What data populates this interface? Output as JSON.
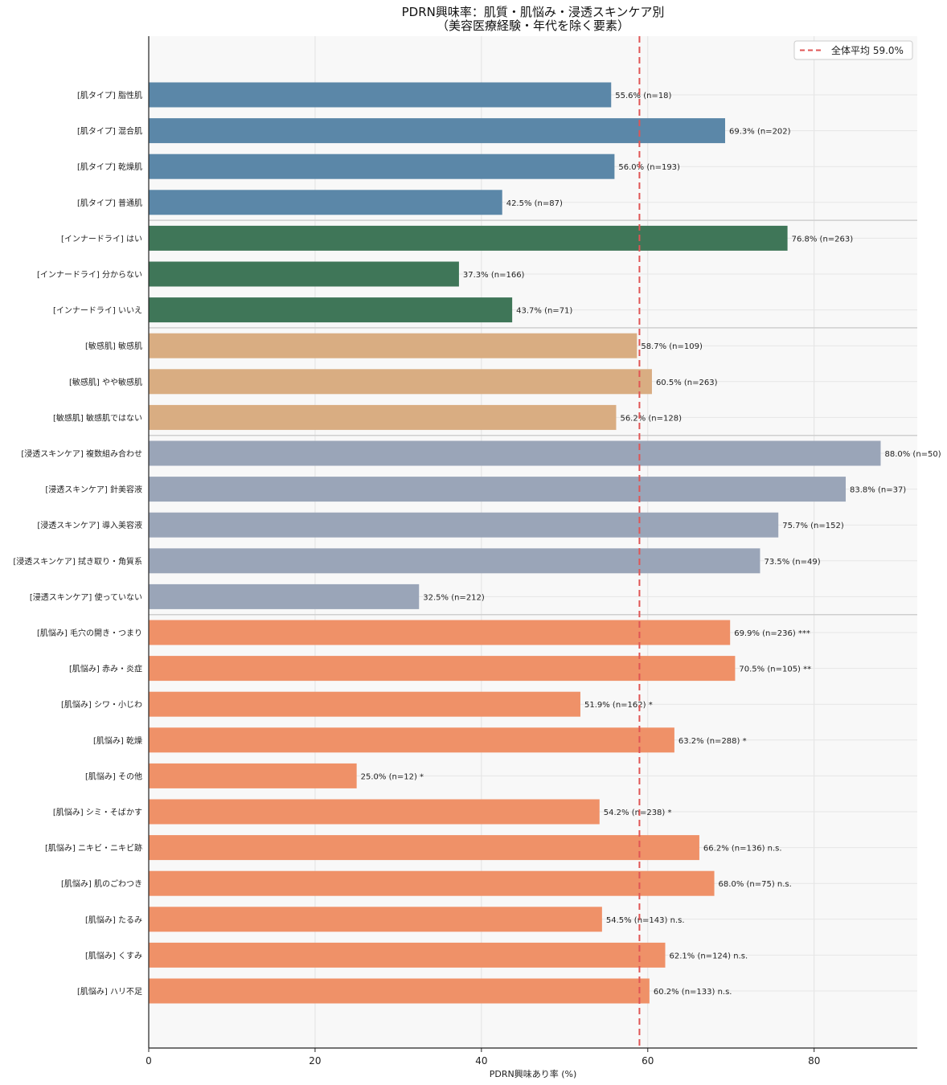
{
  "chart_data": {
    "type": "bar",
    "orientation": "horizontal",
    "title_line1": "PDRN興味率：肌質・肌悩み・浸透スキンケア別",
    "title_line2": "（美容医療経験・年代を除く要素）",
    "xlabel": "PDRN興味あり率 (%)",
    "ylabel": "",
    "xlim": [
      0,
      92.4
    ],
    "xticks": [
      0,
      20,
      40,
      60,
      80
    ],
    "grid": true,
    "reference_line": {
      "value": 59.0,
      "label": "全体平均 59.0%",
      "color": "#e05555"
    },
    "legend_position": "top-right",
    "groups": [
      {
        "name": "肌タイプ",
        "color": "#5b87a8",
        "count": 4
      },
      {
        "name": "インナードライ",
        "color": "#3f7658",
        "count": 3
      },
      {
        "name": "敏感肌",
        "color": "#d9ad82",
        "count": 3
      },
      {
        "name": "浸透スキンケア",
        "color": "#9aa5b8",
        "count": 5
      },
      {
        "name": "肌悩み",
        "color": "#ef9168",
        "count": 11
      }
    ],
    "bars": [
      {
        "label": "[肌タイプ] 脂性肌",
        "group": 0,
        "value": 55.6,
        "data_label": "55.6% (n=18)"
      },
      {
        "label": "[肌タイプ] 混合肌",
        "group": 0,
        "value": 69.3,
        "data_label": "69.3% (n=202)"
      },
      {
        "label": "[肌タイプ] 乾燥肌",
        "group": 0,
        "value": 56.0,
        "data_label": "56.0% (n=193)"
      },
      {
        "label": "[肌タイプ] 普通肌",
        "group": 0,
        "value": 42.5,
        "data_label": "42.5% (n=87)"
      },
      {
        "label": "[インナードライ] はい",
        "group": 1,
        "value": 76.8,
        "data_label": "76.8% (n=263)"
      },
      {
        "label": "[インナードライ] 分からない",
        "group": 1,
        "value": 37.3,
        "data_label": "37.3% (n=166)"
      },
      {
        "label": "[インナードライ] いいえ",
        "group": 1,
        "value": 43.7,
        "data_label": "43.7% (n=71)"
      },
      {
        "label": "[敏感肌] 敏感肌",
        "group": 2,
        "value": 58.7,
        "data_label": "58.7% (n=109)"
      },
      {
        "label": "[敏感肌] やや敏感肌",
        "group": 2,
        "value": 60.5,
        "data_label": "60.5% (n=263)"
      },
      {
        "label": "[敏感肌] 敏感肌ではない",
        "group": 2,
        "value": 56.2,
        "data_label": "56.2% (n=128)"
      },
      {
        "label": "[浸透スキンケア] 複数組み合わせ",
        "group": 3,
        "value": 88.0,
        "data_label": "88.0% (n=50)"
      },
      {
        "label": "[浸透スキンケア] 針美容液",
        "group": 3,
        "value": 83.8,
        "data_label": "83.8% (n=37)"
      },
      {
        "label": "[浸透スキンケア] 導入美容液",
        "group": 3,
        "value": 75.7,
        "data_label": "75.7% (n=152)"
      },
      {
        "label": "[浸透スキンケア] 拭き取り・角質系",
        "group": 3,
        "value": 73.5,
        "data_label": "73.5% (n=49)"
      },
      {
        "label": "[浸透スキンケア] 使っていない",
        "group": 3,
        "value": 32.5,
        "data_label": "32.5% (n=212)"
      },
      {
        "label": "[肌悩み] 毛穴の開き・つまり",
        "group": 4,
        "value": 69.9,
        "data_label": "69.9% (n=236) ***"
      },
      {
        "label": "[肌悩み] 赤み・炎症",
        "group": 4,
        "value": 70.5,
        "data_label": "70.5% (n=105) **"
      },
      {
        "label": "[肌悩み] シワ・小じわ",
        "group": 4,
        "value": 51.9,
        "data_label": "51.9% (n=162) *"
      },
      {
        "label": "[肌悩み] 乾燥",
        "group": 4,
        "value": 63.2,
        "data_label": "63.2% (n=288) *"
      },
      {
        "label": "[肌悩み] その他",
        "group": 4,
        "value": 25.0,
        "data_label": "25.0% (n=12) *"
      },
      {
        "label": "[肌悩み] シミ・そばかす",
        "group": 4,
        "value": 54.2,
        "data_label": "54.2% (n=238) *"
      },
      {
        "label": "[肌悩み] ニキビ・ニキビ跡",
        "group": 4,
        "value": 66.2,
        "data_label": "66.2% (n=136) n.s."
      },
      {
        "label": "[肌悩み] 肌のごわつき",
        "group": 4,
        "value": 68.0,
        "data_label": "68.0% (n=75) n.s."
      },
      {
        "label": "[肌悩み] たるみ",
        "group": 4,
        "value": 54.5,
        "data_label": "54.5% (n=143) n.s."
      },
      {
        "label": "[肌悩み] くすみ",
        "group": 4,
        "value": 62.1,
        "data_label": "62.1% (n=124) n.s."
      },
      {
        "label": "[肌悩み] ハリ不足",
        "group": 4,
        "value": 60.2,
        "data_label": "60.2% (n=133) n.s."
      }
    ]
  }
}
